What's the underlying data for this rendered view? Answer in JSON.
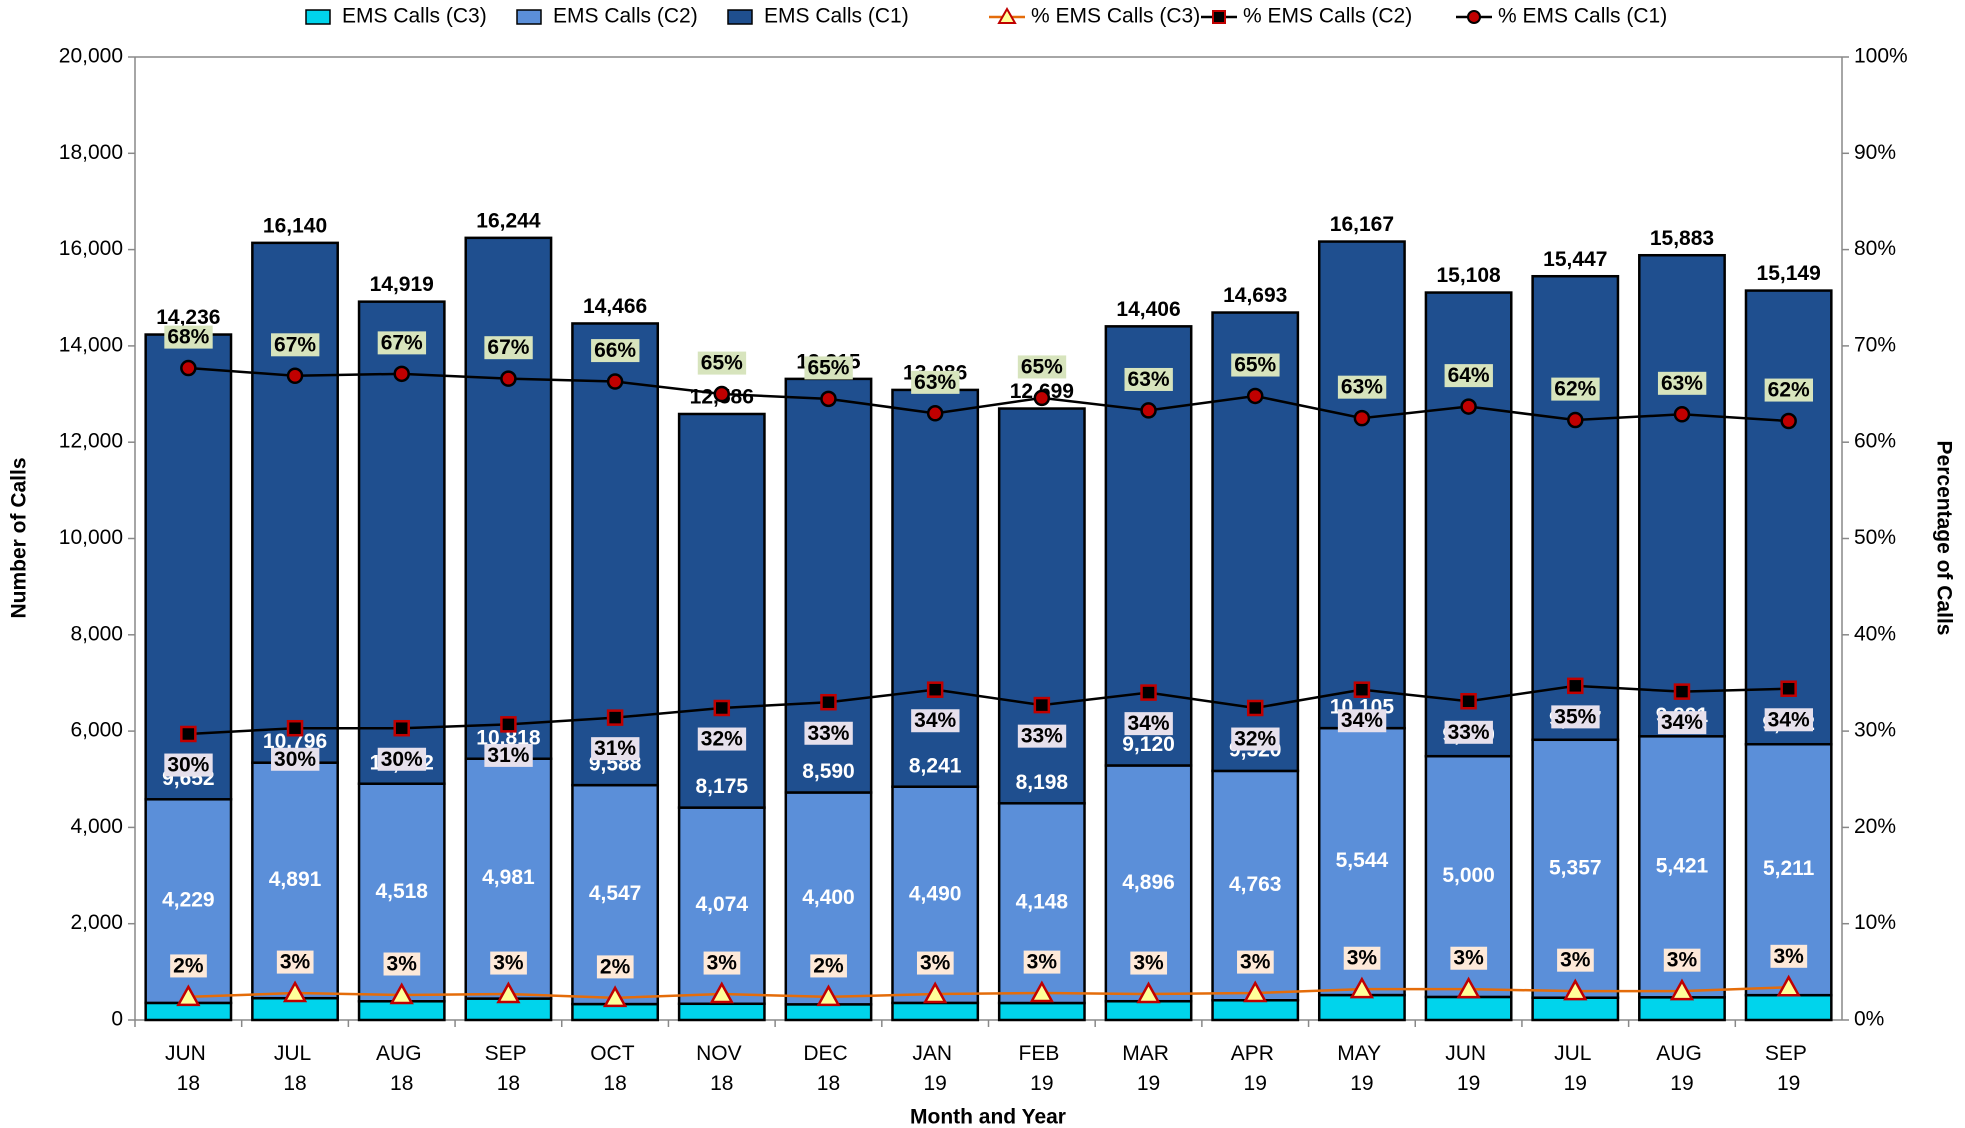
{
  "chart_data": {
    "type": "bar",
    "x_label": "Month and Year",
    "y_label": "Number of Calls",
    "y2_label": "Percentage of Calls",
    "categories": [
      "JUN 18",
      "JUL 18",
      "AUG 18",
      "SEP 18",
      "OCT 18",
      "NOV 18",
      "DEC 18",
      "JAN 19",
      "FEB 19",
      "MAR 19",
      "APR 19",
      "MAY 19",
      "JUN 19",
      "JUL 19",
      "AUG 19",
      "SEP 19"
    ],
    "ylim": [
      0,
      20000
    ],
    "yticks": [
      0,
      {
        "value": 2000,
        "label": "2,000"
      },
      {
        "value": 4000,
        "label": "4,000"
      },
      {
        "value": 6000,
        "label": "6,000"
      },
      {
        "value": 8000,
        "label": "8,000"
      },
      {
        "value": 10000,
        "label": "10,000"
      },
      {
        "value": 12000,
        "label": "12,000"
      },
      {
        "value": 14000,
        "label": "14,000"
      },
      {
        "value": 16000,
        "label": "16,000"
      },
      {
        "value": 18000,
        "label": "18,000"
      },
      {
        "value": 20000,
        "label": "20,000"
      }
    ],
    "y2lim": [
      0,
      100
    ],
    "y2ticks": [
      {
        "value": 0,
        "label": "0%"
      },
      {
        "value": 10,
        "label": "10%"
      },
      {
        "value": 20,
        "label": "20%"
      },
      {
        "value": 30,
        "label": "30%"
      },
      {
        "value": 40,
        "label": "40%"
      },
      {
        "value": 50,
        "label": "50%"
      },
      {
        "value": 60,
        "label": "60%"
      },
      {
        "value": 70,
        "label": "70%"
      },
      {
        "value": 80,
        "label": "80%"
      },
      {
        "value": 90,
        "label": "90%"
      },
      {
        "value": 100,
        "label": "100%"
      }
    ],
    "totals": [
      14236,
      16140,
      14919,
      16244,
      14466,
      12586,
      13315,
      13086,
      12699,
      14406,
      14693,
      16167,
      15108,
      15447,
      15883,
      15149
    ],
    "total_labels": [
      "14,236",
      "16,140",
      "14,919",
      "16,244",
      "14,466",
      "12,586",
      "13,315",
      "13,086",
      "12,699",
      "14,406",
      "14,693",
      "16,167",
      "15,108",
      "15,447",
      "15,883",
      "15,149"
    ],
    "series": [
      {
        "name": "EMS Calls (C3)",
        "type": "bar",
        "color": "#00d4ec",
        "values": [
          355,
          453,
          389,
          445,
          331,
          337,
          325,
          355,
          353,
          390,
          410,
          518,
          479,
          463,
          471,
          516
        ]
      },
      {
        "name": "EMS Calls (C2)",
        "type": "bar",
        "color": "#5b8fd9",
        "values": [
          4229,
          4891,
          4518,
          4981,
          4547,
          4074,
          4400,
          4490,
          4148,
          4896,
          4763,
          5544,
          5000,
          5357,
          5421,
          5211
        ],
        "value_labels": [
          "4,229",
          "4,891",
          "4,518",
          "4,981",
          "4,547",
          "4,074",
          "4,400",
          "4,490",
          "4,148",
          "4,896",
          "4,763",
          "5,544",
          "5,000",
          "5,357",
          "5,421",
          "5,211"
        ]
      },
      {
        "name": "EMS Calls (C1)",
        "type": "bar",
        "color": "#1f4f8f",
        "values": [
          9652,
          10796,
          10012,
          10818,
          9588,
          8175,
          8590,
          8241,
          8198,
          9120,
          9520,
          10105,
          9629,
          9627,
          9991,
          9422
        ],
        "value_labels": [
          "9,652",
          "10,796",
          "10,012",
          "10,818",
          "9,588",
          "8,175",
          "8,590",
          "8,241",
          "8,198",
          "9,120",
          "9,520",
          "10,105",
          "9,629",
          "9,627",
          "9,991",
          "9,422"
        ]
      },
      {
        "name": "% EMS Calls (C3)",
        "type": "line",
        "axis": "y2",
        "color": "#e46c0a",
        "marker": "triangle",
        "marker_fill": "#ffff99",
        "marker_stroke": "#c00000",
        "label_background": "#fde9d9",
        "values": [
          2.4,
          2.8,
          2.6,
          2.7,
          2.3,
          2.7,
          2.4,
          2.7,
          2.8,
          2.7,
          2.8,
          3.2,
          3.2,
          3.0,
          3.0,
          3.4
        ],
        "value_labels": [
          "2%",
          "3%",
          "3%",
          "3%",
          "2%",
          "3%",
          "2%",
          "3%",
          "3%",
          "3%",
          "3%",
          "3%",
          "3%",
          "3%",
          "3%",
          "3%"
        ]
      },
      {
        "name": "% EMS Calls (C2)",
        "type": "line",
        "axis": "y2",
        "color": "#000000",
        "marker": "square",
        "marker_fill": "#000000",
        "marker_stroke": "#c00000",
        "label_background": "#e6e0ec",
        "values": [
          29.7,
          30.3,
          30.3,
          30.7,
          31.4,
          32.4,
          33.0,
          34.3,
          32.7,
          34.0,
          32.4,
          34.3,
          33.1,
          34.7,
          34.1,
          34.4
        ],
        "value_labels": [
          "30%",
          "30%",
          "30%",
          "31%",
          "31%",
          "32%",
          "33%",
          "34%",
          "33%",
          "34%",
          "32%",
          "34%",
          "33%",
          "35%",
          "34%",
          "34%"
        ]
      },
      {
        "name": "% EMS Calls (C1)",
        "type": "line",
        "axis": "y2",
        "color": "#000000",
        "marker": "circle",
        "marker_fill": "#c00000",
        "marker_stroke": "#000000",
        "label_background": "#d7e4bd",
        "values": [
          67.7,
          66.9,
          67.1,
          66.6,
          66.3,
          65.0,
          64.5,
          63.0,
          64.6,
          63.3,
          64.8,
          62.5,
          63.7,
          62.3,
          62.9,
          62.2
        ],
        "value_labels": [
          "68%",
          "67%",
          "67%",
          "67%",
          "66%",
          "65%",
          "65%",
          "63%",
          "65%",
          "63%",
          "65%",
          "63%",
          "64%",
          "62%",
          "63%",
          "62%"
        ]
      }
    ]
  }
}
